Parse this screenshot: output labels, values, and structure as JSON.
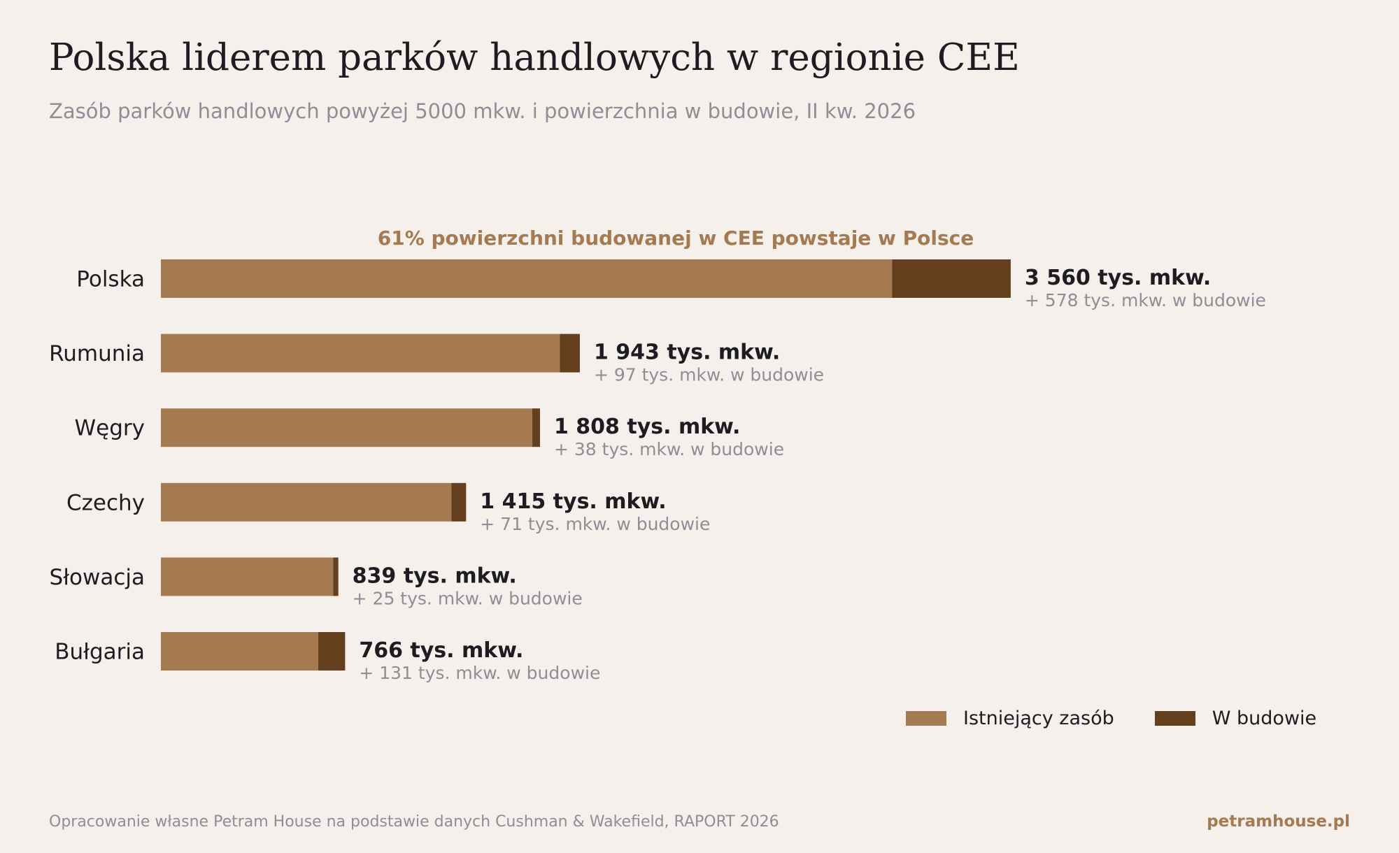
{
  "header": {
    "title": "Polska liderem parków handlowych w regionie CEE",
    "subtitle": "Zasób parków handlowych powyżej 5000 mkw. i powierzchnia w budowie, II kw. 2026"
  },
  "colors": {
    "existing": "#a57a50",
    "construction": "#633f1e",
    "annotation": "#a57a50",
    "muted": "#8e8e98",
    "text": "#1c1c22"
  },
  "chart_data": {
    "type": "bar",
    "orientation": "horizontal",
    "stacked": true,
    "annotation": "61% powierzchni budowanej w CEE powstaje w Polsce",
    "categories": [
      "Polska",
      "Rumunia",
      "Węgry",
      "Czechy",
      "Słowacja",
      "Bułgaria"
    ],
    "series": [
      {
        "name": "Istniejący zasób",
        "values": [
          3560,
          1943,
          1808,
          1415,
          839,
          766
        ]
      },
      {
        "name": "W budowie",
        "values": [
          578,
          97,
          38,
          71,
          25,
          131
        ]
      }
    ],
    "value_labels": [
      "3 560 tys. mkw.",
      "1 943 tys. mkw.",
      "1 808 tys. mkw.",
      "1 415 tys. mkw.",
      "839 tys. mkw.",
      "766 tys. mkw."
    ],
    "construction_labels": [
      "+ 578 tys. mkw. w budowie",
      "+ 97 tys. mkw. w budowie",
      "+ 38 tys. mkw. w budowie",
      "+ 71 tys. mkw. w budowie",
      "+ 25 tys. mkw. w budowie",
      "+ 131 tys. mkw. w budowie"
    ],
    "legend_position": "bottom-right",
    "grid": false
  },
  "footer": {
    "source": "Opracowanie własne Petram House na podstawie danych Cushman & Wakefield, RAPORT 2026",
    "brand": "petramhouse.pl"
  }
}
